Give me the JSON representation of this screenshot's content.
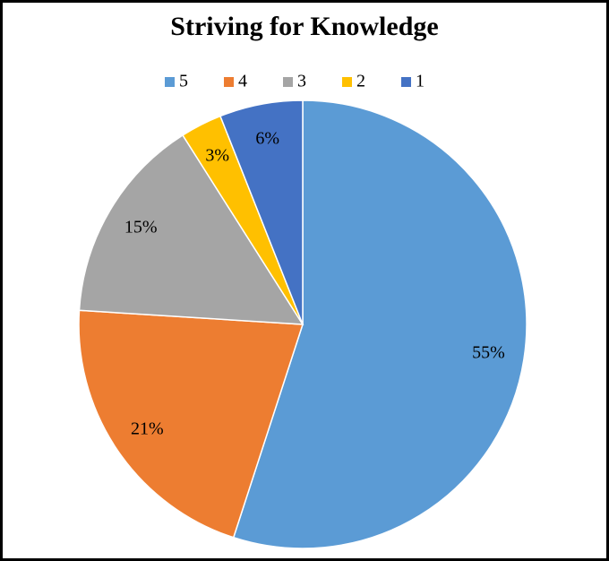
{
  "chart_data": {
    "type": "pie",
    "title": "Striving for Knowledge",
    "categories": [
      "5",
      "4",
      "3",
      "2",
      "1"
    ],
    "values": [
      55,
      21,
      15,
      3,
      6
    ],
    "value_labels": [
      "55%",
      "21%",
      "15%",
      "3%",
      "6%"
    ],
    "colors": [
      "#5b9bd5",
      "#ed7d31",
      "#a5a5a5",
      "#ffc000",
      "#4472c4"
    ],
    "legend": "top"
  }
}
